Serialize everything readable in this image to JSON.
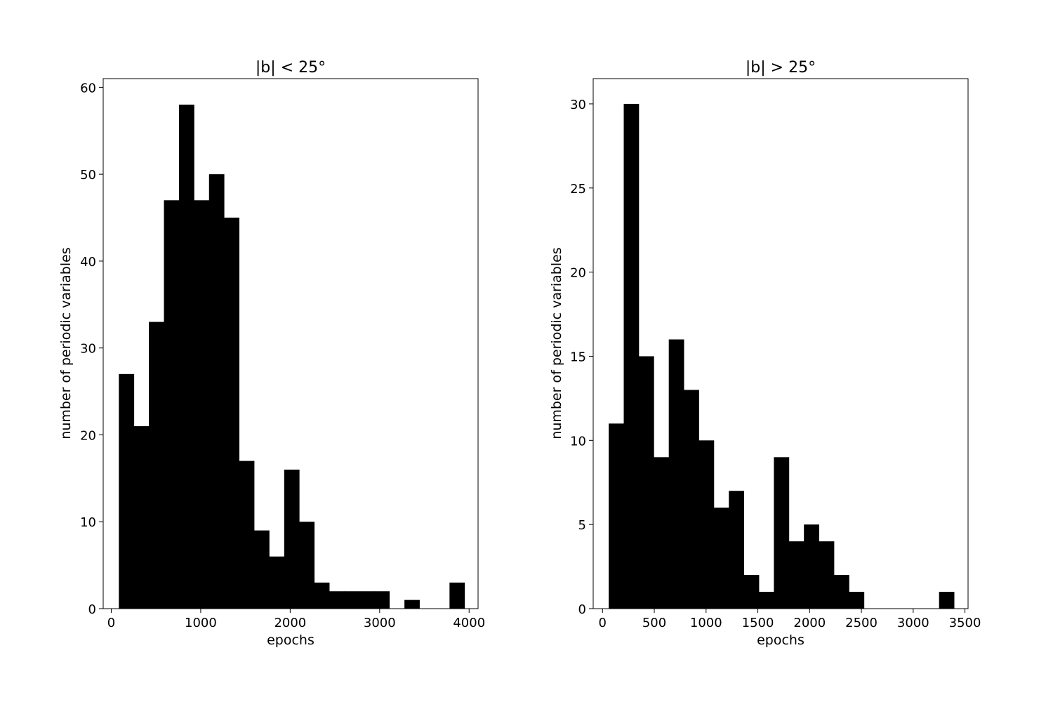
{
  "chart_data": [
    {
      "type": "bar",
      "title": "|b| < 25°",
      "xlabel": "epochs",
      "ylabel": "number of periodic variables",
      "xlim": [
        -90,
        4100
      ],
      "ylim": [
        0,
        61
      ],
      "xticks": [
        0,
        1000,
        2000,
        3000,
        4000
      ],
      "yticks": [
        0,
        10,
        20,
        30,
        40,
        50,
        60
      ],
      "bar_color": "#000000",
      "bins": [
        {
          "x0": 85,
          "x1": 253,
          "value": 27
        },
        {
          "x0": 253,
          "x1": 421,
          "value": 21
        },
        {
          "x0": 421,
          "x1": 589,
          "value": 33
        },
        {
          "x0": 589,
          "x1": 757,
          "value": 47
        },
        {
          "x0": 757,
          "x1": 925,
          "value": 58
        },
        {
          "x0": 925,
          "x1": 1093,
          "value": 47
        },
        {
          "x0": 1093,
          "x1": 1261,
          "value": 50
        },
        {
          "x0": 1261,
          "x1": 1429,
          "value": 45
        },
        {
          "x0": 1429,
          "x1": 1597,
          "value": 17
        },
        {
          "x0": 1597,
          "x1": 1765,
          "value": 9
        },
        {
          "x0": 1765,
          "x1": 1933,
          "value": 6
        },
        {
          "x0": 1933,
          "x1": 2101,
          "value": 16
        },
        {
          "x0": 2101,
          "x1": 2269,
          "value": 10
        },
        {
          "x0": 2269,
          "x1": 2437,
          "value": 3
        },
        {
          "x0": 2437,
          "x1": 2605,
          "value": 2
        },
        {
          "x0": 2605,
          "x1": 2773,
          "value": 2
        },
        {
          "x0": 2773,
          "x1": 2941,
          "value": 2
        },
        {
          "x0": 2941,
          "x1": 3109,
          "value": 2
        },
        {
          "x0": 3109,
          "x1": 3277,
          "value": 0
        },
        {
          "x0": 3277,
          "x1": 3445,
          "value": 1
        },
        {
          "x0": 3445,
          "x1": 3613,
          "value": 0
        },
        {
          "x0": 3613,
          "x1": 3781,
          "value": 0
        },
        {
          "x0": 3781,
          "x1": 3949,
          "value": 3
        }
      ]
    },
    {
      "type": "bar",
      "title": "|b| > 25°",
      "xlabel": "epochs",
      "ylabel": "number of periodic variables",
      "xlim": [
        -90,
        3530
      ],
      "ylim": [
        0,
        31.5
      ],
      "xticks": [
        0,
        500,
        1000,
        1500,
        2000,
        2500,
        3000,
        3500
      ],
      "yticks": [
        0,
        5,
        10,
        15,
        20,
        25,
        30
      ],
      "bar_color": "#000000",
      "bins": [
        {
          "x0": 60,
          "x1": 205,
          "value": 11
        },
        {
          "x0": 205,
          "x1": 350,
          "value": 30
        },
        {
          "x0": 350,
          "x1": 495,
          "value": 15
        },
        {
          "x0": 495,
          "x1": 640,
          "value": 9
        },
        {
          "x0": 640,
          "x1": 785,
          "value": 16
        },
        {
          "x0": 785,
          "x1": 930,
          "value": 13
        },
        {
          "x0": 930,
          "x1": 1075,
          "value": 10
        },
        {
          "x0": 1075,
          "x1": 1220,
          "value": 6
        },
        {
          "x0": 1220,
          "x1": 1365,
          "value": 7
        },
        {
          "x0": 1365,
          "x1": 1510,
          "value": 2
        },
        {
          "x0": 1510,
          "x1": 1655,
          "value": 1
        },
        {
          "x0": 1655,
          "x1": 1800,
          "value": 9
        },
        {
          "x0": 1800,
          "x1": 1945,
          "value": 4
        },
        {
          "x0": 1945,
          "x1": 2090,
          "value": 5
        },
        {
          "x0": 2090,
          "x1": 2235,
          "value": 4
        },
        {
          "x0": 2235,
          "x1": 2380,
          "value": 2
        },
        {
          "x0": 2380,
          "x1": 2525,
          "value": 1
        },
        {
          "x0": 2525,
          "x1": 2670,
          "value": 0
        },
        {
          "x0": 2670,
          "x1": 2815,
          "value": 0
        },
        {
          "x0": 2815,
          "x1": 2960,
          "value": 0
        },
        {
          "x0": 2960,
          "x1": 3105,
          "value": 0
        },
        {
          "x0": 3105,
          "x1": 3250,
          "value": 0
        },
        {
          "x0": 3250,
          "x1": 3395,
          "value": 1
        }
      ]
    }
  ]
}
